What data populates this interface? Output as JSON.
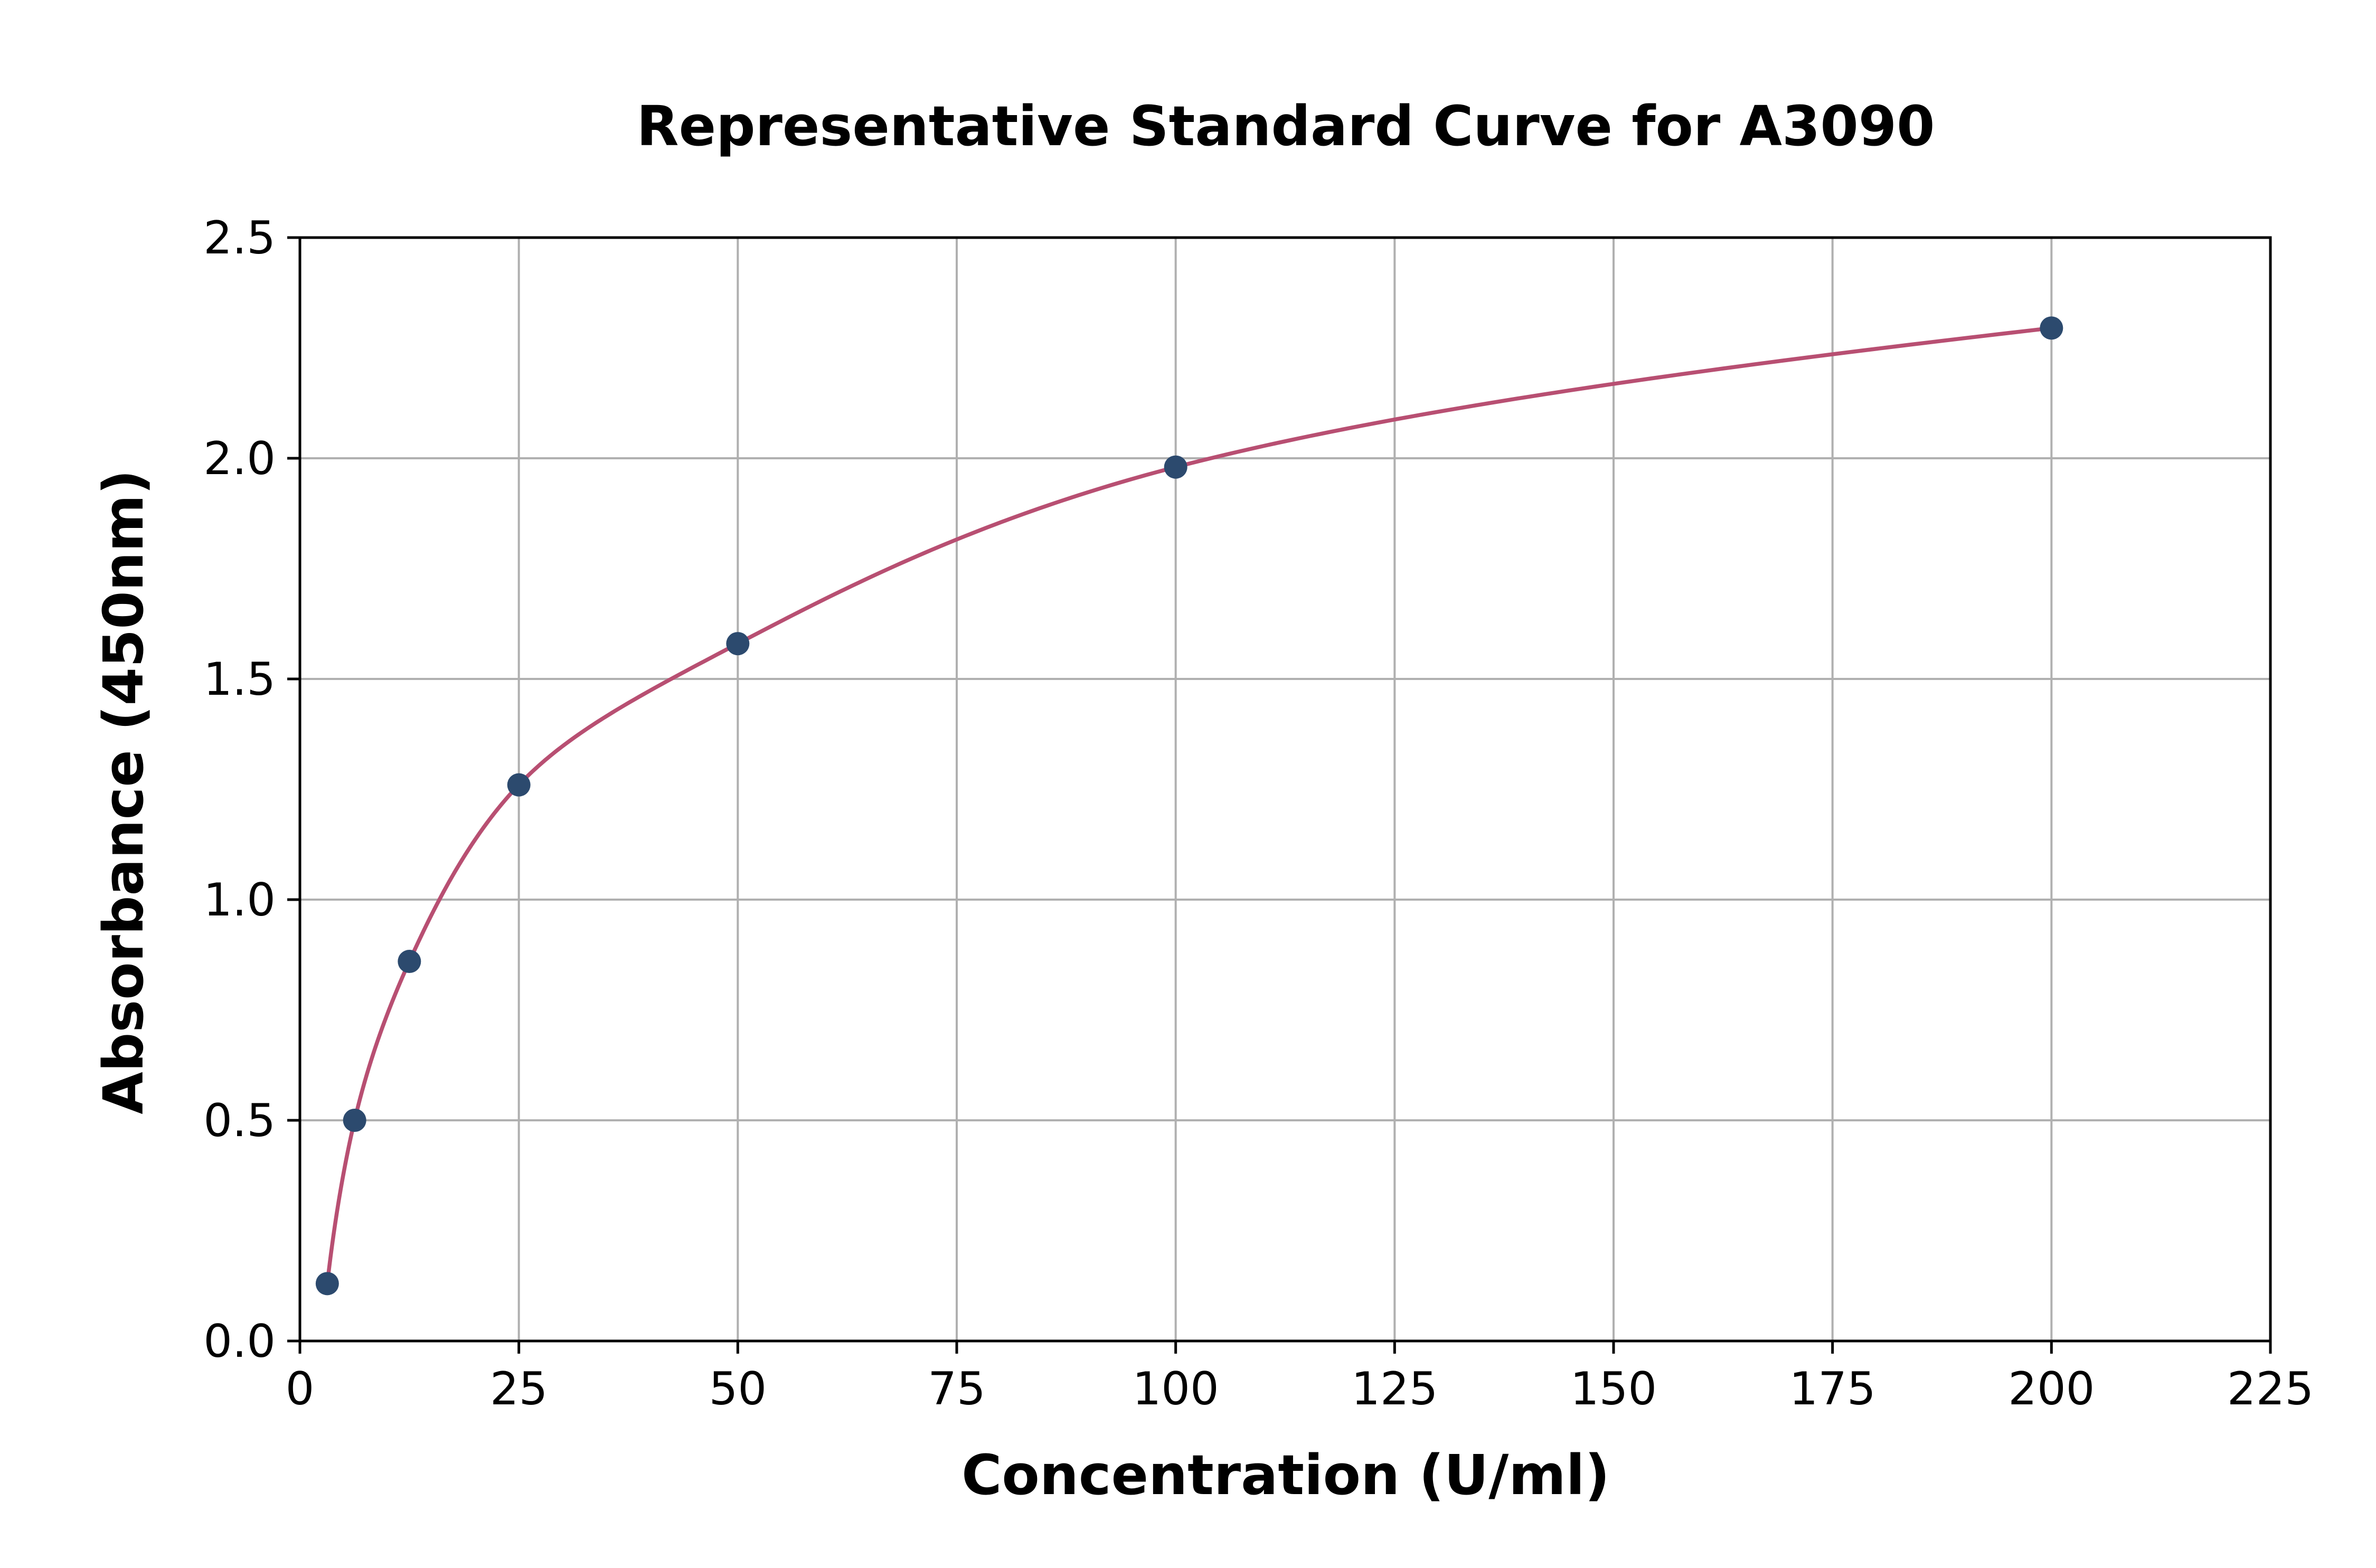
{
  "chart_data": {
    "type": "scatter",
    "title": "Representative Standard Curve for A3090",
    "xlabel": "Concentration (U/ml)",
    "ylabel": "Absorbance (450nm)",
    "xlim": [
      0,
      225
    ],
    "ylim": [
      0,
      2.5
    ],
    "xticks": [
      0,
      25,
      50,
      75,
      100,
      125,
      150,
      175,
      200,
      225
    ],
    "yticks": [
      "0.0",
      "0.5",
      "1.0",
      "1.5",
      "2.0",
      "2.5"
    ],
    "grid": true,
    "series": [
      {
        "kind": "points",
        "x": [
          3.125,
          6.25,
          12.5,
          25,
          50,
          100,
          200
        ],
        "y": [
          0.13,
          0.5,
          0.86,
          1.26,
          1.58,
          1.98,
          2.295
        ]
      },
      {
        "kind": "fitted-curve",
        "x_range": [
          3.125,
          200
        ]
      }
    ],
    "colors": {
      "points": "#2c4a6e",
      "curve": "#b84f72"
    }
  }
}
